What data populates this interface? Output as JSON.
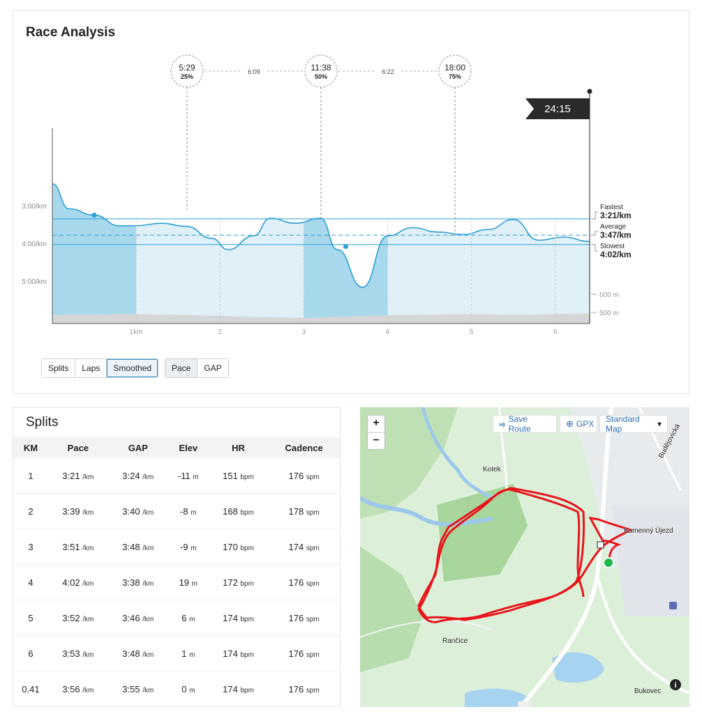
{
  "race": {
    "title": "Race Analysis",
    "markers": [
      {
        "time": "5:29",
        "pct": "25%"
      },
      {
        "time": "11:38",
        "pct": "50%"
      },
      {
        "time": "18:00",
        "pct": "75%"
      }
    ],
    "segment_times": [
      "6:09",
      "6:22"
    ],
    "finish_time": "24:15",
    "y_ticks": [
      "3:00/km",
      "4:00/km",
      "5:00/km"
    ],
    "x_ticks": [
      "1km",
      "2",
      "3",
      "4",
      "5",
      "6"
    ],
    "elev_ticks": [
      "600 m",
      "500 m"
    ],
    "fastest": {
      "label": "Fastest",
      "value": "3:21/km"
    },
    "average": {
      "label": "Average",
      "value": "3:47/km"
    },
    "slowest": {
      "label": "Slowest",
      "value": "4:02/km"
    },
    "buttons_view": [
      "Splits",
      "Laps",
      "Smoothed"
    ],
    "buttons_metric": [
      "Pace",
      "GAP"
    ],
    "colors": {
      "accent": "#2b9fd6",
      "fill_dark": "#a8d8ec",
      "fill_light": "#dff0f8",
      "elev": "#d6d6d6"
    }
  },
  "chart_data": {
    "type": "area",
    "x": [
      0.0,
      0.2,
      0.5,
      0.8,
      1.0,
      1.3,
      1.6,
      1.9,
      2.1,
      2.4,
      2.6,
      2.9,
      3.2,
      3.4,
      3.7,
      4.0,
      4.3,
      4.6,
      4.9,
      5.2,
      5.5,
      5.8,
      6.1,
      6.41
    ],
    "pace_seconds_per_km": [
      145,
      185,
      195,
      212,
      212,
      208,
      213,
      232,
      250,
      228,
      200,
      208,
      200,
      250,
      310,
      228,
      215,
      222,
      226,
      218,
      202,
      235,
      230,
      237
    ],
    "xlabel": "",
    "ylabel": "",
    "y_ticks": [
      "3:00/km",
      "4:00/km",
      "5:00/km"
    ],
    "x_ticks": [
      "1km",
      "2",
      "3",
      "4",
      "5",
      "6"
    ],
    "reference_lines": {
      "Fastest": "3:21/km",
      "Average": "3:47/km",
      "Slowest": "4:02/km"
    }
  },
  "splits": {
    "title": "Splits",
    "columns": [
      "KM",
      "Pace",
      "GAP",
      "Elev",
      "HR",
      "Cadence"
    ],
    "rows": [
      {
        "km": "1",
        "pace": "3:21",
        "gap": "3:24",
        "elev": "-11",
        "hr": "151",
        "cad": "176"
      },
      {
        "km": "2",
        "pace": "3:39",
        "gap": "3:40",
        "elev": "-8",
        "hr": "168",
        "cad": "178"
      },
      {
        "km": "3",
        "pace": "3:51",
        "gap": "3:48",
        "elev": "-9",
        "hr": "170",
        "cad": "174"
      },
      {
        "km": "4",
        "pace": "4:02",
        "gap": "3:38",
        "elev": "19",
        "hr": "172",
        "cad": "176"
      },
      {
        "km": "5",
        "pace": "3:52",
        "gap": "3:46",
        "elev": "6",
        "hr": "174",
        "cad": "176"
      },
      {
        "km": "6",
        "pace": "3:53",
        "gap": "3:48",
        "elev": "1",
        "hr": "174",
        "cad": "176"
      },
      {
        "km": "0.41",
        "pace": "3:56",
        "gap": "3:55",
        "elev": "0",
        "hr": "174",
        "cad": "176"
      }
    ],
    "units": {
      "pace": "/km",
      "elev": "m",
      "hr": "bpm",
      "cad": "spm"
    }
  },
  "map": {
    "zoom_in": "+",
    "zoom_out": "−",
    "save_route": "Save Route",
    "gpx": "GPX",
    "map_type": "Standard Map",
    "places": [
      "Kotek",
      "Kamenný Újezd",
      "Rančice",
      "Bukovec",
      "Budějovická"
    ],
    "route_color": "#e8141a"
  }
}
